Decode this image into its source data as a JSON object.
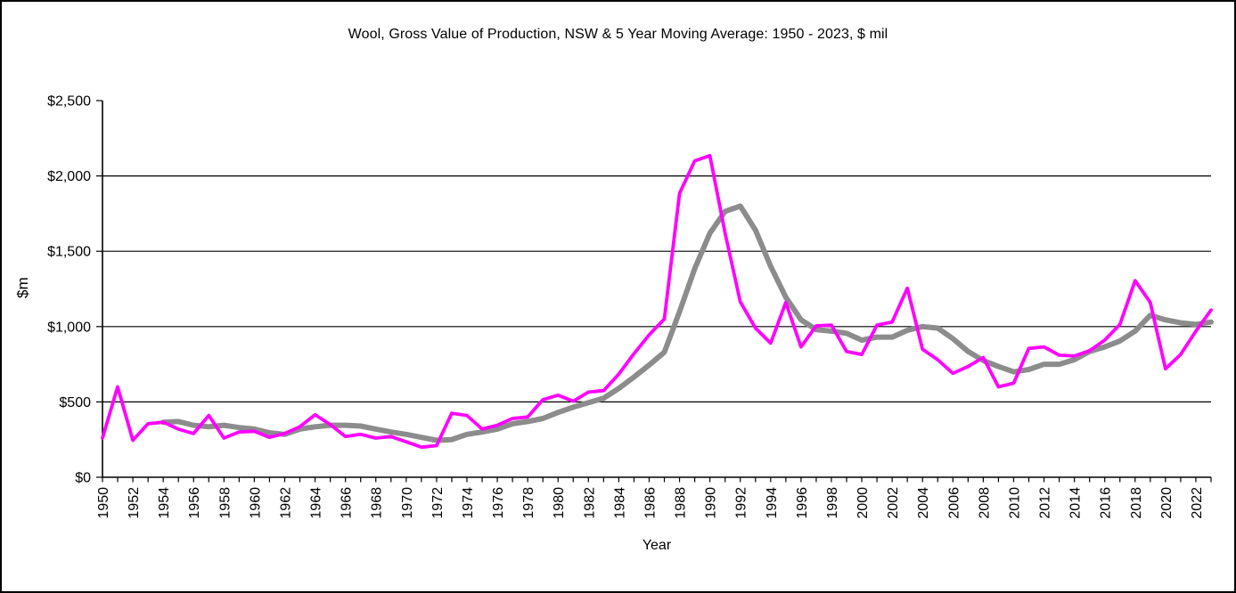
{
  "chart_data": {
    "type": "line",
    "title": "Wool, Gross Value of Production, NSW & 5 Year Moving Average: 1950 - 2023, $ mil",
    "xlabel": "Year",
    "ylabel": "$m",
    "ylim": [
      0,
      2500
    ],
    "y_tick_values": [
      0,
      500,
      1000,
      1500,
      2000,
      2500
    ],
    "y_tick_labels": [
      "$0",
      "$500",
      "$1,000",
      "$1,500",
      "$2,000",
      "$2,500"
    ],
    "gridline_values": [
      500,
      1000,
      1500,
      2000
    ],
    "grid": "horizontal",
    "legend_position": "none",
    "x_tick_label_every": 2,
    "x_tick_labels": [
      "1950",
      "1952",
      "1954",
      "1956",
      "1958",
      "1960",
      "1962",
      "1964",
      "1966",
      "1968",
      "1970",
      "1972",
      "1974",
      "1976",
      "1978",
      "1980",
      "1982",
      "1984",
      "1986",
      "1988",
      "1990",
      "1992",
      "1994",
      "1996",
      "1998",
      "2000",
      "2002",
      "2004",
      "2006",
      "2008",
      "2010",
      "2012",
      "2014",
      "2016",
      "2018",
      "2020",
      "2022"
    ],
    "years": [
      1950,
      1951,
      1952,
      1953,
      1954,
      1955,
      1956,
      1957,
      1958,
      1959,
      1960,
      1961,
      1962,
      1963,
      1964,
      1965,
      1966,
      1967,
      1968,
      1969,
      1970,
      1971,
      1972,
      1973,
      1974,
      1975,
      1976,
      1977,
      1978,
      1979,
      1980,
      1981,
      1982,
      1983,
      1984,
      1985,
      1986,
      1987,
      1988,
      1989,
      1990,
      1991,
      1992,
      1993,
      1994,
      1995,
      1996,
      1997,
      1998,
      1999,
      2000,
      2001,
      2002,
      2003,
      2004,
      2005,
      2006,
      2007,
      2008,
      2009,
      2010,
      2011,
      2012,
      2013,
      2014,
      2015,
      2016,
      2017,
      2018,
      2019,
      2020,
      2021,
      2022,
      2023
    ],
    "series": [
      {
        "name": "NSW gross value of production",
        "color": "#FF00FF",
        "stroke_width": 3.8,
        "values": [
          260,
          600,
          245,
          355,
          365,
          320,
          290,
          410,
          260,
          300,
          305,
          265,
          290,
          335,
          415,
          350,
          270,
          285,
          260,
          270,
          235,
          200,
          210,
          425,
          410,
          320,
          345,
          390,
          400,
          515,
          545,
          505,
          565,
          575,
          685,
          820,
          945,
          1050,
          1885,
          2100,
          2135,
          1620,
          1165,
          990,
          890,
          1160,
          865,
          1005,
          1010,
          835,
          815,
          1010,
          1030,
          1255,
          850,
          780,
          690,
          735,
          795,
          600,
          625,
          855,
          865,
          810,
          805,
          840,
          910,
          1015,
          1305,
          1160,
          720,
          815,
          970,
          1110
        ]
      },
      {
        "name": "5 year moving average",
        "color": "#8C8C8C",
        "stroke_width": 6,
        "values": [
          null,
          null,
          null,
          null,
          365,
          370,
          345,
          335,
          345,
          330,
          320,
          295,
          285,
          320,
          335,
          345,
          345,
          340,
          320,
          300,
          285,
          265,
          245,
          250,
          285,
          300,
          320,
          355,
          370,
          390,
          430,
          465,
          495,
          525,
          590,
          665,
          745,
          830,
          1100,
          1385,
          1620,
          1765,
          1800,
          1640,
          1400,
          1195,
          1045,
          980,
          970,
          955,
          910,
          930,
          930,
          975,
          1000,
          990,
          920,
          835,
          775,
          735,
          700,
          715,
          750,
          750,
          780,
          835,
          865,
          905,
          970,
          1075,
          1045,
          1025,
          1015,
          1030
        ]
      }
    ]
  }
}
